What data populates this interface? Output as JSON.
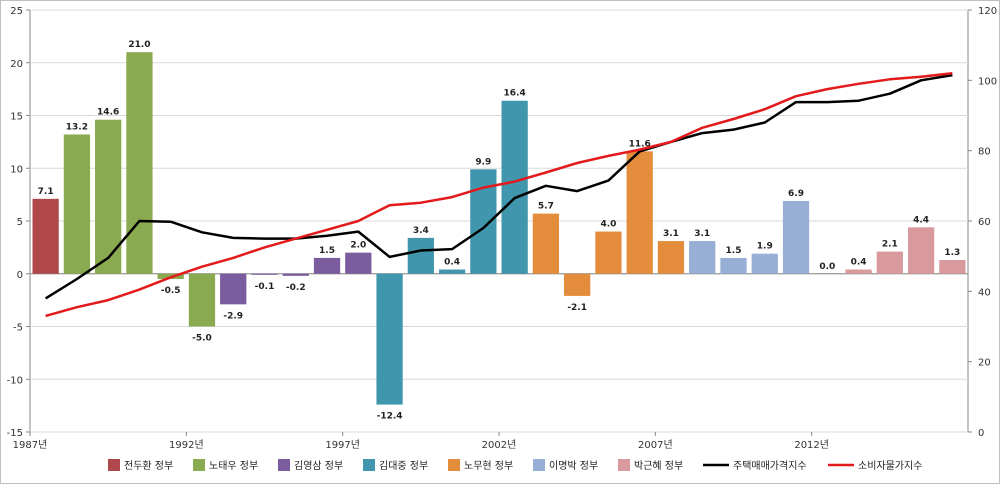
{
  "chart_data": {
    "type": "bar+line",
    "x": [
      1987,
      1988,
      1989,
      1990,
      1991,
      1992,
      1993,
      1994,
      1995,
      1996,
      1997,
      1998,
      1999,
      2000,
      2001,
      2002,
      2003,
      2004,
      2005,
      2006,
      2007,
      2008,
      2009,
      2010,
      2011,
      2012,
      2013,
      2014,
      2015,
      2016
    ],
    "x_tick_labels": [
      {
        "year": 1987,
        "label": "1987년"
      },
      {
        "year": 1992,
        "label": "1992년"
      },
      {
        "year": 1997,
        "label": "1997년"
      },
      {
        "year": 2002,
        "label": "2002년"
      },
      {
        "year": 2007,
        "label": "2007년"
      },
      {
        "year": 2012,
        "label": "2012년"
      }
    ],
    "y_left": {
      "min": -15,
      "max": 25,
      "step": 5,
      "tick_labels": [
        "-15",
        "-10",
        "-5",
        "0",
        "5",
        "10",
        "15",
        "20",
        "25"
      ]
    },
    "y_right": {
      "min": 0,
      "max": 120,
      "step": 20,
      "tick_labels": [
        "0",
        "20",
        "40",
        "60",
        "80",
        "100",
        "120"
      ]
    },
    "bars": [
      7.1,
      13.2,
      14.6,
      21.0,
      -0.5,
      -5.0,
      -2.9,
      -0.1,
      -0.2,
      1.5,
      2.0,
      -12.4,
      3.4,
      0.4,
      9.9,
      16.4,
      5.7,
      -2.1,
      4.0,
      11.6,
      3.1,
      3.1,
      1.5,
      1.9,
      6.9,
      0.0,
      0.4,
      2.1,
      4.4,
      1.3
    ],
    "bar_labels": [
      "7.1",
      "13.2",
      "14.6",
      "21.0",
      "-0.5",
      "-5.0",
      "-2.9",
      "-0.1",
      "-0.2",
      "1.5",
      "2.0",
      "-12.4",
      "3.4",
      "0.4",
      "9.9",
      "16.4",
      "5.7",
      "-2.1",
      "4.0",
      "11.6",
      "3.1",
      "3.1",
      "1.5",
      "1.9",
      "6.9",
      "0.0",
      "0.4",
      "2.1",
      "4.4",
      "1.3"
    ],
    "bar_government": [
      0,
      1,
      1,
      1,
      1,
      1,
      2,
      2,
      2,
      2,
      2,
      3,
      3,
      3,
      3,
      3,
      4,
      4,
      4,
      4,
      4,
      5,
      5,
      5,
      5,
      5,
      6,
      6,
      6,
      6
    ],
    "governments": [
      {
        "name": "전두환 정부",
        "color": "#b0474a"
      },
      {
        "name": "노태우 정부",
        "color": "#8aaa4f"
      },
      {
        "name": "김영삼 정부",
        "color": "#7b5c9e"
      },
      {
        "name": "김대중 정부",
        "color": "#3f96ad"
      },
      {
        "name": "노무현 정부",
        "color": "#e38d3c"
      },
      {
        "name": "이명박 정부",
        "color": "#97aed5"
      },
      {
        "name": "박근혜 정부",
        "color": "#d99a9d"
      }
    ],
    "series": [
      {
        "name": "주택매매가격지수",
        "color": "#000000",
        "axis": "right",
        "values": [
          38.0,
          43.5,
          49.5,
          60.0,
          59.8,
          56.8,
          55.2,
          55.0,
          55.0,
          55.8,
          57.0,
          49.8,
          51.6,
          52.0,
          58.0,
          66.5,
          70.0,
          68.5,
          71.5,
          79.8,
          82.5,
          85.0,
          86.0,
          88.0,
          93.8,
          93.8,
          94.2,
          96.2,
          100.0,
          101.5
        ]
      },
      {
        "name": "소비자물가지수",
        "color": "#e31a1c",
        "axis": "right",
        "values": [
          33.0,
          35.5,
          37.5,
          40.5,
          44.0,
          47.0,
          49.5,
          52.5,
          55.0,
          57.5,
          60.0,
          64.5,
          65.2,
          66.8,
          69.5,
          71.2,
          73.8,
          76.5,
          78.5,
          80.3,
          82.5,
          86.5,
          89.0,
          91.8,
          95.5,
          97.5,
          99.0,
          100.3,
          101.0,
          102.0
        ]
      }
    ]
  }
}
